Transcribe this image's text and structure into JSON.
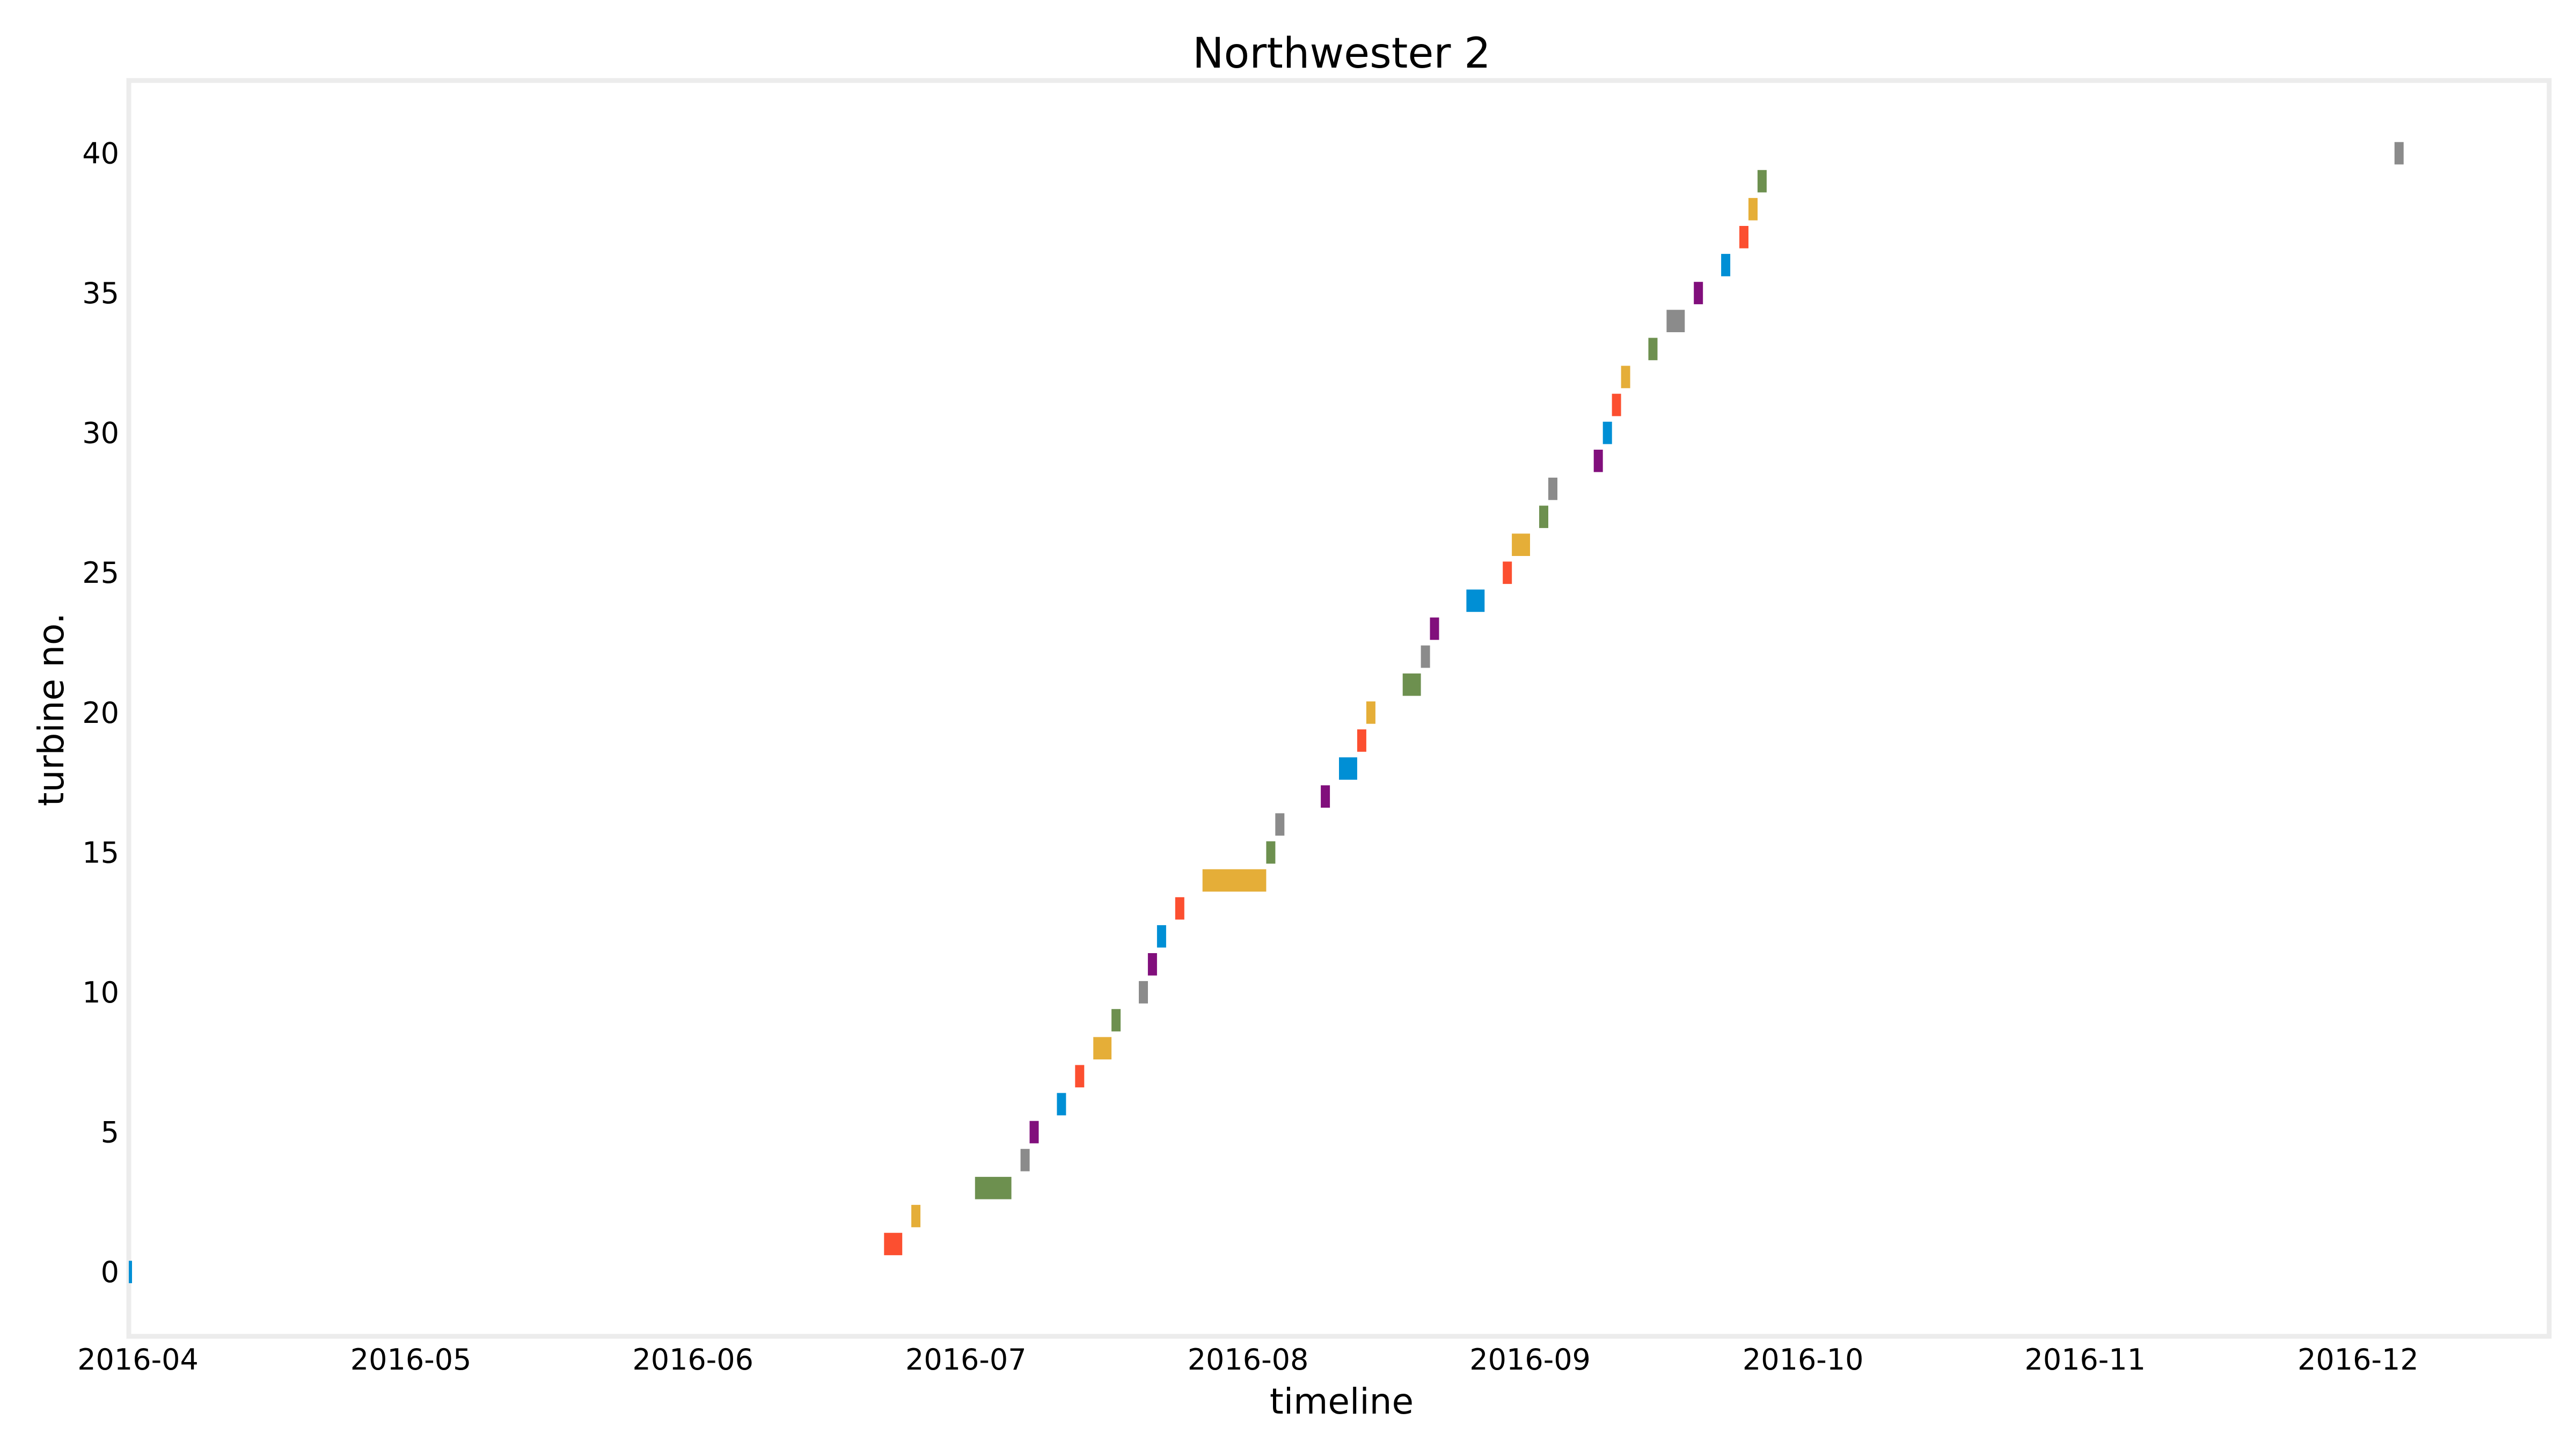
{
  "chart_data": {
    "type": "bar",
    "orientation": "horizontal-timeline",
    "title": "Northwester 2",
    "xlabel": "timeline",
    "ylabel": "turbine no.",
    "x_ticks": [
      "2016-04",
      "2016-05",
      "2016-06",
      "2016-07",
      "2016-08",
      "2016-09",
      "2016-10",
      "2016-11",
      "2016-12"
    ],
    "y_ticks": [
      0,
      5,
      10,
      15,
      20,
      25,
      30,
      35,
      40
    ],
    "xlim": [
      "2016-03-31",
      "2016-12-22"
    ],
    "ylim": [
      -2.3,
      42.6
    ],
    "grid": false,
    "legend": "none",
    "colors": [
      "#008fd5",
      "#fc4f30",
      "#e5ae38",
      "#6d904f",
      "#8b8b8b",
      "#810f7c"
    ],
    "bars": [
      {
        "turbine": 0,
        "start": "2016-03-31",
        "end": "2016-03-31"
      },
      {
        "turbine": 1,
        "start": "2016-06-22",
        "end": "2016-06-24"
      },
      {
        "turbine": 2,
        "start": "2016-06-25",
        "end": "2016-06-26"
      },
      {
        "turbine": 3,
        "start": "2016-07-02",
        "end": "2016-07-06"
      },
      {
        "turbine": 4,
        "start": "2016-07-07",
        "end": "2016-07-08"
      },
      {
        "turbine": 5,
        "start": "2016-07-08",
        "end": "2016-07-09"
      },
      {
        "turbine": 6,
        "start": "2016-07-11",
        "end": "2016-07-12"
      },
      {
        "turbine": 7,
        "start": "2016-07-13",
        "end": "2016-07-14"
      },
      {
        "turbine": 8,
        "start": "2016-07-15",
        "end": "2016-07-17"
      },
      {
        "turbine": 9,
        "start": "2016-07-17",
        "end": "2016-07-18"
      },
      {
        "turbine": 10,
        "start": "2016-07-20",
        "end": "2016-07-21"
      },
      {
        "turbine": 11,
        "start": "2016-07-21",
        "end": "2016-07-22"
      },
      {
        "turbine": 12,
        "start": "2016-07-22",
        "end": "2016-07-23"
      },
      {
        "turbine": 13,
        "start": "2016-07-24",
        "end": "2016-07-25"
      },
      {
        "turbine": 14,
        "start": "2016-07-27",
        "end": "2016-08-03"
      },
      {
        "turbine": 15,
        "start": "2016-08-03",
        "end": "2016-08-04"
      },
      {
        "turbine": 16,
        "start": "2016-08-04",
        "end": "2016-08-05"
      },
      {
        "turbine": 17,
        "start": "2016-08-09",
        "end": "2016-08-10"
      },
      {
        "turbine": 18,
        "start": "2016-08-11",
        "end": "2016-08-13"
      },
      {
        "turbine": 19,
        "start": "2016-08-13",
        "end": "2016-08-14"
      },
      {
        "turbine": 20,
        "start": "2016-08-14",
        "end": "2016-08-15"
      },
      {
        "turbine": 21,
        "start": "2016-08-18",
        "end": "2016-08-20"
      },
      {
        "turbine": 22,
        "start": "2016-08-20",
        "end": "2016-08-21"
      },
      {
        "turbine": 23,
        "start": "2016-08-21",
        "end": "2016-08-22"
      },
      {
        "turbine": 24,
        "start": "2016-08-25",
        "end": "2016-08-27"
      },
      {
        "turbine": 25,
        "start": "2016-08-29",
        "end": "2016-08-30"
      },
      {
        "turbine": 26,
        "start": "2016-08-30",
        "end": "2016-09-01"
      },
      {
        "turbine": 27,
        "start": "2016-09-02",
        "end": "2016-09-03"
      },
      {
        "turbine": 28,
        "start": "2016-09-03",
        "end": "2016-09-04"
      },
      {
        "turbine": 29,
        "start": "2016-09-08",
        "end": "2016-09-09"
      },
      {
        "turbine": 30,
        "start": "2016-09-09",
        "end": "2016-09-10"
      },
      {
        "turbine": 31,
        "start": "2016-09-10",
        "end": "2016-09-11"
      },
      {
        "turbine": 32,
        "start": "2016-09-11",
        "end": "2016-09-12"
      },
      {
        "turbine": 33,
        "start": "2016-09-14",
        "end": "2016-09-15"
      },
      {
        "turbine": 34,
        "start": "2016-09-16",
        "end": "2016-09-18"
      },
      {
        "turbine": 35,
        "start": "2016-09-19",
        "end": "2016-09-20"
      },
      {
        "turbine": 36,
        "start": "2016-09-22",
        "end": "2016-09-23"
      },
      {
        "turbine": 37,
        "start": "2016-09-24",
        "end": "2016-09-25"
      },
      {
        "turbine": 38,
        "start": "2016-09-25",
        "end": "2016-09-26"
      },
      {
        "turbine": 39,
        "start": "2016-09-26",
        "end": "2016-09-27"
      },
      {
        "turbine": 40,
        "start": "2016-12-05",
        "end": "2016-12-06"
      }
    ]
  }
}
